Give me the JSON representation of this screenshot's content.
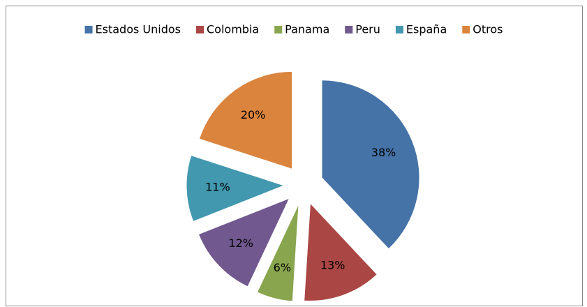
{
  "chart_data": {
    "type": "pie",
    "categories": [
      "Estados Unidos",
      "Colombia",
      "Panama",
      "Peru",
      "España",
      "Otros"
    ],
    "values": [
      38,
      13,
      6,
      12,
      11,
      20
    ],
    "value_labels": [
      "38%",
      "13%",
      "6%",
      "12%",
      "11%",
      "20%"
    ],
    "colors": [
      "#4572a7",
      "#aa4643",
      "#89a54e",
      "#71588f",
      "#4198af",
      "#db843d"
    ],
    "legend": "top"
  }
}
